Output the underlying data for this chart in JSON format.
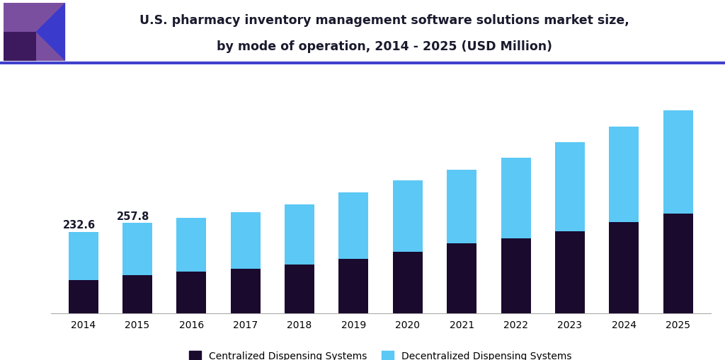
{
  "title_line1": "U.S. pharmacy inventory management software solutions market size,",
  "title_line2": "by mode of operation, 2014 - 2025 (USD Million)",
  "years": [
    2014,
    2015,
    2016,
    2017,
    2018,
    2019,
    2020,
    2021,
    2022,
    2023,
    2024,
    2025
  ],
  "centralized": [
    95,
    108,
    118,
    128,
    140,
    155,
    175,
    200,
    215,
    235,
    260,
    285
  ],
  "decentralized": [
    137.6,
    149.8,
    155,
    162,
    172,
    190,
    205,
    210,
    230,
    255,
    275,
    295
  ],
  "annotations": {
    "2014": "232.6",
    "2015": "257.8"
  },
  "color_centralized": "#1a0a2e",
  "color_decentralized": "#5bc8f5",
  "color_header_bg": "#ffffff",
  "color_separator": "#4040cc",
  "color_logo_purple": "#7b4fa0",
  "color_logo_dark": "#3d1a5e",
  "color_logo_blue": "#3a3acc",
  "background_color": "#ffffff",
  "legend_centralized": "Centralized Dispensing Systems",
  "legend_decentralized": "Decentralized Dispensing Systems",
  "bar_width": 0.55,
  "ylim": [
    0,
    620
  ]
}
